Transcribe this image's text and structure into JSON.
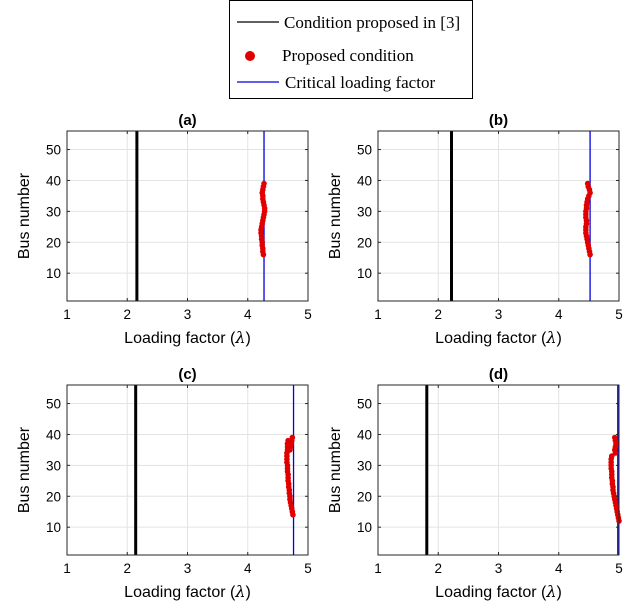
{
  "legend": {
    "entries": [
      {
        "label": "Condition proposed in [3]",
        "color": "#000000",
        "marker": "line"
      },
      {
        "label": "Proposed condition",
        "color": "#e00000",
        "marker": "dot"
      },
      {
        "label": "Critical loading factor",
        "color": "#0000e0",
        "marker": "line"
      }
    ]
  },
  "chart_data": [
    {
      "type": "scatter",
      "title": "(a)",
      "xlabel": "Loading factor (λ)",
      "ylabel": "Bus number",
      "xlim": [
        1,
        5
      ],
      "ylim": [
        1,
        56
      ],
      "xticks": [
        1,
        2,
        3,
        4,
        5
      ],
      "yticks": [
        10,
        20,
        30,
        40,
        50
      ],
      "grid": true,
      "series": [
        {
          "name": "Condition proposed in [3]",
          "kind": "vline",
          "x": 2.16,
          "color": "#000000"
        },
        {
          "name": "Critical loading factor",
          "kind": "vline",
          "x": 4.27,
          "color": "#0000e0"
        },
        {
          "name": "Proposed condition",
          "kind": "points",
          "color": "#e00000",
          "x": [
            4.26,
            4.25,
            4.25,
            4.24,
            4.24,
            4.23,
            4.23,
            4.22,
            4.22,
            4.23,
            4.24,
            4.25,
            4.26,
            4.27,
            4.28,
            4.28,
            4.27,
            4.26,
            4.25,
            4.25,
            4.24,
            4.25,
            4.26,
            4.27
          ],
          "y": [
            16,
            17,
            18,
            19,
            20,
            21,
            22,
            23,
            24,
            25,
            26,
            27,
            28,
            29,
            30,
            31,
            32,
            33,
            34,
            35,
            36,
            37,
            38,
            39
          ]
        }
      ]
    },
    {
      "type": "scatter",
      "title": "(b)",
      "xlabel": "Loading factor (λ)",
      "ylabel": "Bus number",
      "xlim": [
        1,
        5
      ],
      "ylim": [
        1,
        56
      ],
      "xticks": [
        1,
        2,
        3,
        4,
        5
      ],
      "yticks": [
        10,
        20,
        30,
        40,
        50
      ],
      "grid": true,
      "series": [
        {
          "name": "Condition proposed in [3]",
          "kind": "vline",
          "x": 2.22,
          "color": "#000000"
        },
        {
          "name": "Critical loading factor",
          "kind": "vline",
          "x": 4.52,
          "color": "#0000e0"
        },
        {
          "name": "Proposed condition",
          "kind": "points",
          "color": "#e00000",
          "x": [
            4.52,
            4.51,
            4.5,
            4.49,
            4.48,
            4.47,
            4.46,
            4.45,
            4.45,
            4.45,
            4.46,
            4.46,
            4.45,
            4.45,
            4.45,
            4.46,
            4.46,
            4.47,
            4.48,
            4.5,
            4.52,
            4.51,
            4.49,
            4.48
          ],
          "y": [
            16,
            17,
            18,
            19,
            20,
            21,
            22,
            23,
            24,
            25,
            26,
            27,
            28,
            29,
            30,
            31,
            32,
            33,
            34,
            35,
            36,
            37,
            38,
            39
          ]
        }
      ]
    },
    {
      "type": "scatter",
      "title": "(c)",
      "xlabel": "Loading factor (λ)",
      "ylabel": "Bus number",
      "xlim": [
        1,
        5
      ],
      "ylim": [
        1,
        56
      ],
      "xticks": [
        1,
        2,
        3,
        4,
        5
      ],
      "yticks": [
        10,
        20,
        30,
        40,
        50
      ],
      "grid": true,
      "series": [
        {
          "name": "Condition proposed in [3]",
          "kind": "vline",
          "x": 2.14,
          "color": "#000000"
        },
        {
          "name": "Critical loading factor",
          "kind": "vline",
          "x": 4.76,
          "color": "#0000e0"
        },
        {
          "name": "Proposed condition",
          "kind": "points",
          "color": "#e00000",
          "x": [
            4.75,
            4.74,
            4.73,
            4.72,
            4.71,
            4.7,
            4.7,
            4.69,
            4.69,
            4.68,
            4.68,
            4.67,
            4.67,
            4.67,
            4.66,
            4.66,
            4.66,
            4.65,
            4.65,
            4.65,
            4.65,
            4.66,
            4.66,
            4.66,
            4.67,
            4.74,
            4.73,
            4.72,
            4.71,
            4.7
          ],
          "y": [
            14,
            15,
            16,
            17,
            18,
            19,
            20,
            21,
            22,
            23,
            24,
            25,
            26,
            27,
            28,
            29,
            30,
            31,
            32,
            33,
            34,
            35,
            36,
            37,
            38,
            39,
            38,
            37,
            36,
            35
          ]
        }
      ]
    },
    {
      "type": "scatter",
      "title": "(d)",
      "xlabel": "Loading factor (λ)",
      "ylabel": "Bus number",
      "xlim": [
        1,
        5
      ],
      "ylim": [
        1,
        56
      ],
      "xticks": [
        1,
        2,
        3,
        4,
        5
      ],
      "yticks": [
        10,
        20,
        30,
        40,
        50
      ],
      "grid": true,
      "series": [
        {
          "name": "Condition proposed in [3]",
          "kind": "vline",
          "x": 1.81,
          "color": "#000000"
        },
        {
          "name": "Critical loading factor",
          "kind": "vline",
          "x": 4.98,
          "color": "#0000e0"
        },
        {
          "name": "Proposed condition",
          "kind": "points",
          "color": "#e00000",
          "x": [
            5.0,
            4.99,
            4.98,
            4.97,
            4.96,
            4.95,
            4.94,
            4.93,
            4.92,
            4.91,
            4.9,
            4.9,
            4.89,
            4.89,
            4.88,
            4.88,
            4.88,
            4.87,
            4.87,
            4.87,
            4.87,
            4.88,
            4.94,
            4.93,
            4.94,
            4.95,
            4.94,
            4.93
          ],
          "y": [
            12,
            13,
            14,
            15,
            16,
            17,
            18,
            19,
            20,
            21,
            22,
            23,
            24,
            25,
            26,
            27,
            28,
            29,
            30,
            31,
            32,
            33,
            34,
            35,
            36,
            37,
            38,
            39
          ]
        }
      ]
    }
  ]
}
